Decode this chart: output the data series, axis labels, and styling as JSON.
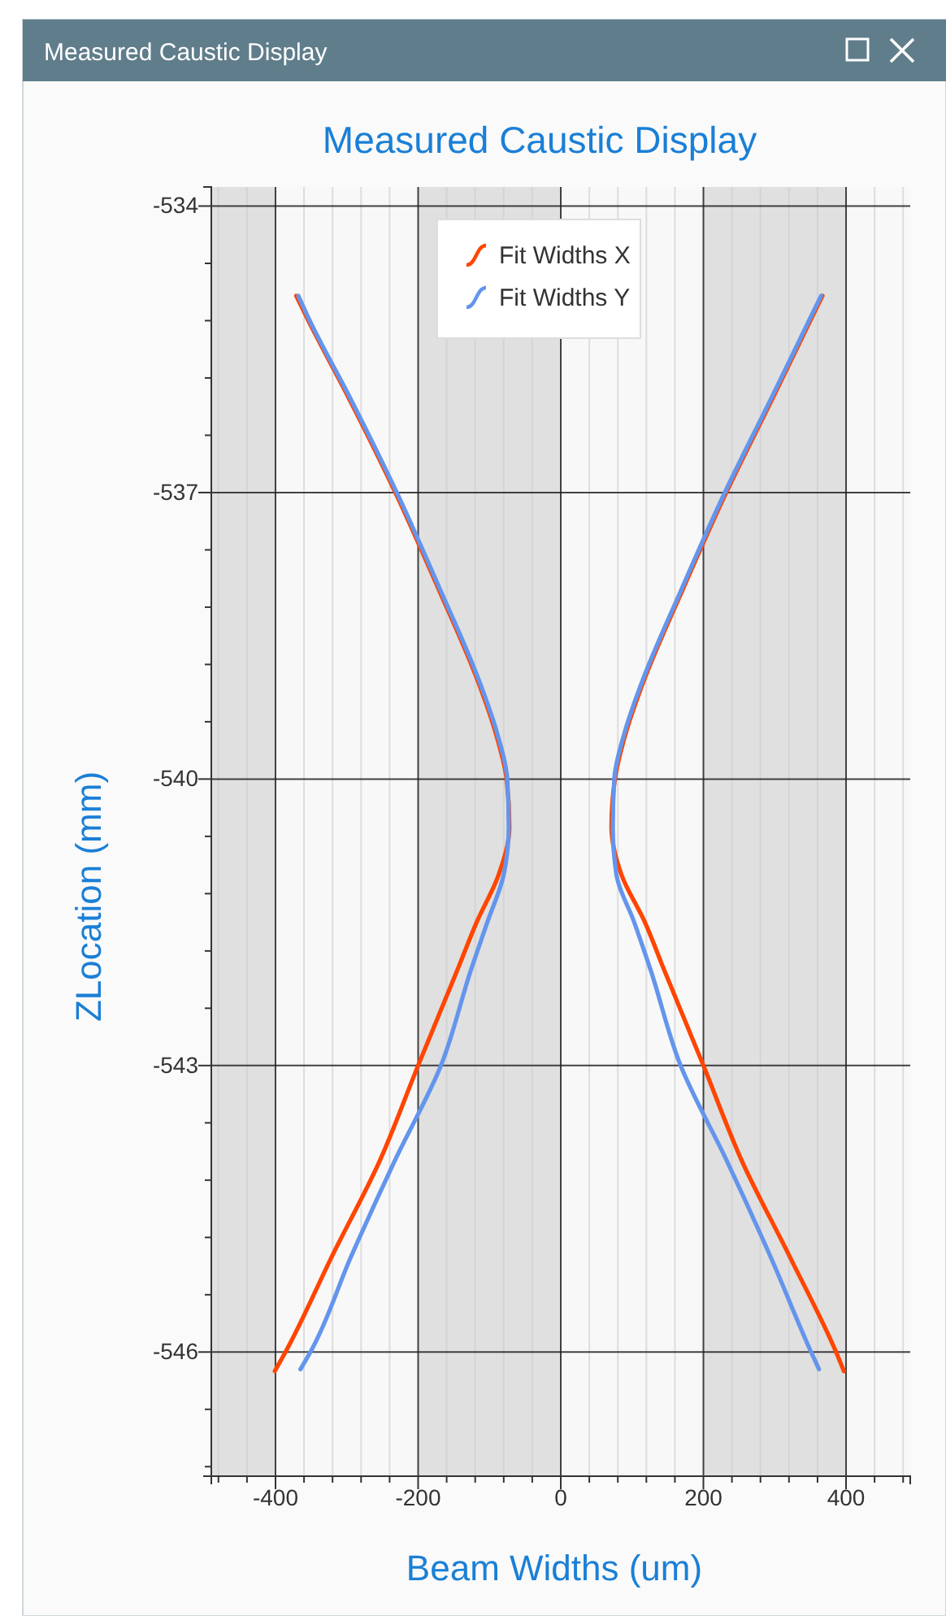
{
  "chart_data": {
    "type": "line",
    "title": "Measured Caustic Display",
    "xlabel": "Beam Widths (um)",
    "ylabel": "ZLocation (mm)",
    "annotations": [
      "Measured Caustic Display"
    ],
    "xlim": [
      -490,
      490
    ],
    "ylim": [
      -547.3,
      -533.8
    ],
    "xticks": [
      {
        "value": -480,
        "label": null
      },
      {
        "value": -440,
        "label": null
      },
      -400,
      {
        "value": -360,
        "label": null
      },
      {
        "value": -320,
        "label": null
      },
      {
        "value": -280,
        "label": null
      },
      {
        "value": -240,
        "label": null
      },
      -200,
      {
        "value": -160,
        "label": null
      },
      {
        "value": -120,
        "label": null
      },
      {
        "value": -80,
        "label": null
      },
      {
        "value": -40,
        "label": null
      },
      0,
      {
        "value": 40,
        "label": null
      },
      {
        "value": 80,
        "label": null
      },
      {
        "value": 120,
        "label": null
      },
      {
        "value": 160,
        "label": null
      },
      200,
      {
        "value": 240,
        "label": null
      },
      {
        "value": 280,
        "label": null
      },
      {
        "value": 320,
        "label": null
      },
      {
        "value": 360,
        "label": null
      },
      400,
      {
        "value": 440,
        "label": null
      },
      {
        "value": 480,
        "label": null
      }
    ],
    "yticks": [
      {
        "value": -547.2,
        "label": null
      },
      {
        "value": -546.6,
        "label": null
      },
      -546,
      {
        "value": -545.4,
        "label": null
      },
      {
        "value": -544.8,
        "label": null
      },
      {
        "value": -544.2,
        "label": null
      },
      {
        "value": -543.6,
        "label": null
      },
      -543,
      {
        "value": -542.4,
        "label": null
      },
      {
        "value": -541.8,
        "label": null
      },
      {
        "value": -541.2,
        "label": null
      },
      {
        "value": -540.6,
        "label": null
      },
      -540,
      {
        "value": -539.4,
        "label": null
      },
      {
        "value": -538.8,
        "label": null
      },
      {
        "value": -538.2,
        "label": null
      },
      {
        "value": -537.6,
        "label": null
      },
      -537,
      {
        "value": -536.4,
        "label": null
      },
      {
        "value": -535.8,
        "label": null
      },
      {
        "value": -535.2,
        "label": null
      },
      {
        "value": -534.6,
        "label": null
      },
      -534
    ],
    "bands": [
      {
        "axis": "x",
        "from": -490,
        "to": -400,
        "color": "#e0e0e0"
      },
      {
        "axis": "x",
        "from": -200,
        "to": 0,
        "color": "#e0e0e0"
      },
      {
        "axis": "x",
        "from": 200,
        "to": 400,
        "color": "#e0e0e0"
      }
    ],
    "grid": true,
    "legend": "top",
    "marker": "none",
    "line_style": "solid",
    "series": [
      {
        "name": "Fit Widths X",
        "color": "#ff4500",
        "x": [
          -371,
          -354,
          -298,
          -232,
          -172,
          -115,
          -92,
          -76,
          -72,
          -87,
          -118,
          -145,
          -200,
          -254,
          -321,
          -386,
          -401,
          null,
          367,
          350,
          298,
          232,
          172,
          115,
          92,
          76,
          71,
          85,
          118,
          145,
          200,
          254,
          321,
          386,
          397
        ],
        "values": [
          -534.94,
          -535.2,
          -536,
          -537,
          -538,
          -539,
          -539.5,
          -540,
          -540.5,
          -541,
          -541.5,
          -542,
          -543,
          -544,
          -545,
          -546,
          -546.2,
          null,
          -534.94,
          -535.2,
          -536,
          -537,
          -538,
          -539,
          -539.5,
          -540,
          -540.5,
          -541,
          -541.5,
          -542,
          -543,
          -544,
          -545,
          -546,
          -546.2
        ]
      },
      {
        "name": "Fit Widths Y",
        "color": "#6495ed",
        "x": [
          -368,
          -352,
          -296,
          -230,
          -170,
          -113,
          -90,
          -75,
          -73,
          -80,
          -103,
          -126,
          -168,
          -233,
          -294,
          -351,
          -365,
          null,
          365,
          348,
          296,
          230,
          170,
          113,
          90,
          75,
          73,
          78,
          103,
          126,
          168,
          233,
          294,
          351,
          362
        ],
        "values": [
          -534.94,
          -535.2,
          -536,
          -537,
          -538,
          -539,
          -539.5,
          -540,
          -540.5,
          -541,
          -541.5,
          -542,
          -543,
          -544,
          -545,
          -546,
          -546.18,
          null,
          -534.94,
          -535.2,
          -536,
          -537,
          -538,
          -539,
          -539.5,
          -540,
          -540.5,
          -541,
          -541.5,
          -542,
          -543,
          -544,
          -545,
          -546,
          -546.18
        ]
      }
    ]
  }
}
